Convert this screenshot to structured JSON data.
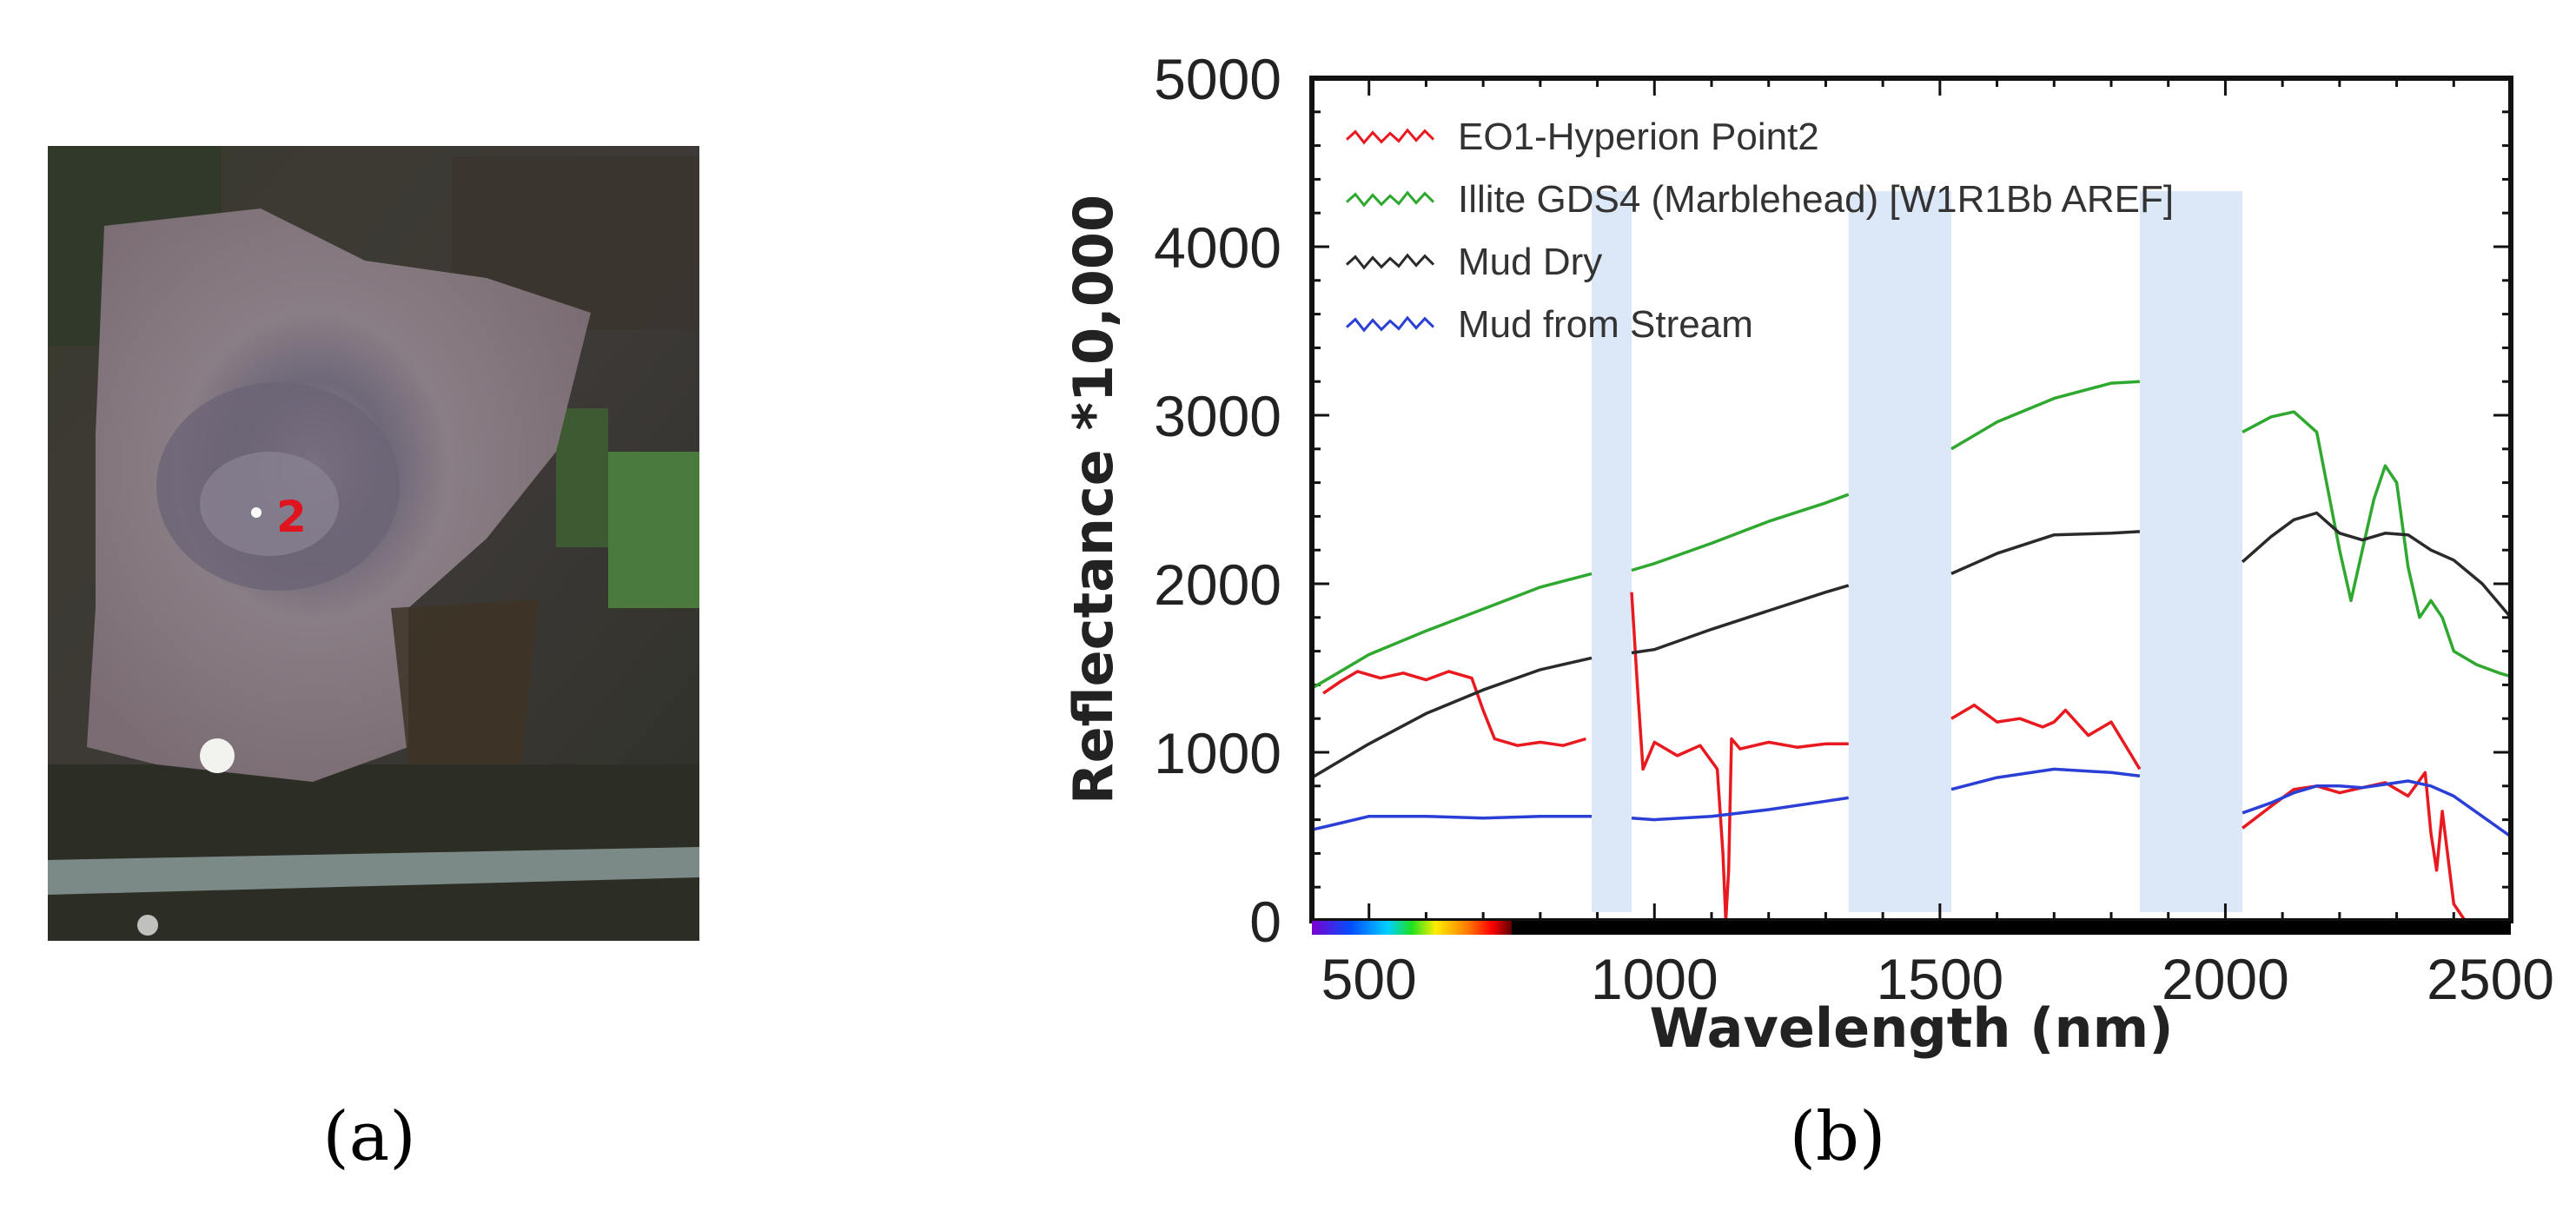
{
  "panel_a": {
    "label": "(a)",
    "image_name": "satellite-image-mud-volcano",
    "point_label": "2"
  },
  "panel_b": {
    "label": "(b)"
  },
  "chart_data": {
    "type": "line",
    "title": "",
    "xlabel": "Wavelength (nm)",
    "ylabel": "Reflectance *10,000",
    "xlim": [
      400,
      2500
    ],
    "ylim": [
      0,
      5000
    ],
    "xticks": [
      500,
      1000,
      1500,
      2000,
      2500
    ],
    "xtick_labels": [
      "500",
      "1000",
      "1500",
      "2000",
      "2500"
    ],
    "yticks": [
      0,
      1000,
      2000,
      3000,
      4000,
      5000
    ],
    "ytick_labels": [
      "0",
      "1000",
      "2000",
      "3000",
      "4000",
      "5000"
    ],
    "legend_position": "top-left",
    "masked_bands": [
      [
        890,
        960
      ],
      [
        1340,
        1520
      ],
      [
        1850,
        2030
      ]
    ],
    "series": [
      {
        "name": "EO1-Hyperion Point2",
        "color": "#e8191f",
        "x": [
          420,
          450,
          480,
          520,
          560,
          600,
          640,
          680,
          700,
          720,
          760,
          800,
          840,
          880,
          960,
          970,
          980,
          1000,
          1040,
          1080,
          1110,
          1120,
          1125,
          1130,
          1135,
          1150,
          1200,
          1250,
          1300,
          1340,
          1520,
          1560,
          1600,
          1640,
          1680,
          1700,
          1720,
          1760,
          1800,
          1850,
          2030,
          2080,
          2120,
          2160,
          2200,
          2240,
          2280,
          2320,
          2350,
          2360,
          2370,
          2380,
          2400,
          2420
        ],
        "y": [
          1350,
          1420,
          1480,
          1440,
          1470,
          1430,
          1480,
          1440,
          1250,
          1080,
          1040,
          1060,
          1040,
          1080,
          1950,
          1400,
          900,
          1060,
          980,
          1040,
          900,
          400,
          0,
          300,
          1080,
          1020,
          1060,
          1030,
          1050,
          1050,
          1200,
          1280,
          1180,
          1200,
          1150,
          1180,
          1250,
          1100,
          1180,
          900,
          550,
          680,
          780,
          800,
          760,
          790,
          820,
          740,
          880,
          520,
          300,
          650,
          100,
          0
        ]
      },
      {
        "name": "Illite GDS4 (Marblehead) [W1R1Bb AREF]",
        "color": "#2ea82e",
        "x": [
          400,
          500,
          600,
          700,
          800,
          890,
          960,
          1000,
          1100,
          1200,
          1300,
          1340,
          1520,
          1600,
          1700,
          1800,
          1850,
          2030,
          2080,
          2120,
          2160,
          2200,
          2220,
          2240,
          2260,
          2280,
          2300,
          2320,
          2340,
          2360,
          2380,
          2400,
          2440,
          2480,
          2500
        ],
        "y": [
          1380,
          1580,
          1720,
          1850,
          1980,
          2060,
          2080,
          2120,
          2240,
          2370,
          2480,
          2530,
          2800,
          2960,
          3100,
          3190,
          3200,
          2900,
          2990,
          3020,
          2900,
          2200,
          1900,
          2200,
          2500,
          2700,
          2600,
          2100,
          1800,
          1900,
          1800,
          1600,
          1520,
          1470,
          1450
        ]
      },
      {
        "name": "Mud Dry",
        "color": "#2a2a2a",
        "x": [
          400,
          500,
          600,
          700,
          800,
          890,
          960,
          1000,
          1100,
          1200,
          1300,
          1340,
          1520,
          1600,
          1700,
          1800,
          1850,
          2030,
          2080,
          2120,
          2160,
          2200,
          2240,
          2280,
          2320,
          2360,
          2400,
          2450,
          2500
        ],
        "y": [
          850,
          1050,
          1230,
          1370,
          1490,
          1560,
          1590,
          1610,
          1730,
          1840,
          1950,
          1990,
          2060,
          2180,
          2290,
          2300,
          2310,
          2130,
          2280,
          2380,
          2420,
          2300,
          2260,
          2300,
          2290,
          2200,
          2140,
          2000,
          1800
        ]
      },
      {
        "name": "Mud from Stream",
        "color": "#2b3fd6",
        "x": [
          400,
          450,
          500,
          600,
          700,
          800,
          890,
          960,
          1000,
          1100,
          1200,
          1300,
          1340,
          1520,
          1600,
          1700,
          1800,
          1850,
          2030,
          2080,
          2120,
          2160,
          2200,
          2240,
          2280,
          2320,
          2360,
          2400,
          2450,
          2500
        ],
        "y": [
          540,
          580,
          620,
          620,
          610,
          620,
          620,
          610,
          600,
          620,
          660,
          710,
          730,
          780,
          850,
          900,
          880,
          860,
          640,
          700,
          760,
          800,
          800,
          790,
          810,
          830,
          800,
          740,
          620,
          500
        ]
      }
    ]
  }
}
